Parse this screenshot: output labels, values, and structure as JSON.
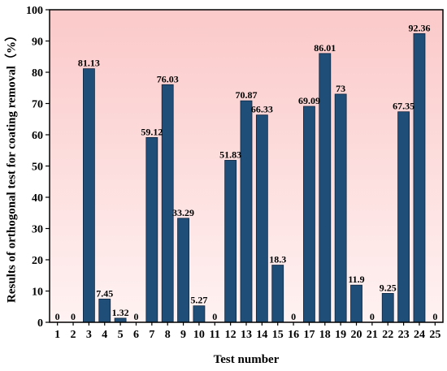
{
  "chart_data": {
    "type": "bar",
    "title": "",
    "xlabel": "Test number",
    "ylabel": "Results of orthogonal test for coating removal（%）",
    "categories": [
      "1",
      "2",
      "3",
      "4",
      "5",
      "6",
      "7",
      "8",
      "9",
      "10",
      "11",
      "12",
      "13",
      "14",
      "15",
      "16",
      "17",
      "18",
      "19",
      "20",
      "21",
      "22",
      "23",
      "24",
      "25"
    ],
    "values": [
      0,
      0,
      81.13,
      7.45,
      1.32,
      0,
      59.12,
      76.03,
      33.29,
      5.27,
      0,
      51.83,
      70.87,
      66.33,
      18.3,
      0,
      69.09,
      86.01,
      73,
      11.9,
      0,
      9.25,
      67.35,
      92.36,
      0
    ],
    "value_labels": [
      "0",
      "0",
      "81.13",
      "7.45",
      "1.32",
      "0",
      "59.12",
      "76.03",
      "33.29",
      "5.27",
      "0",
      "51.83",
      "70.87",
      "66.33",
      "18.3",
      "0",
      "69.09",
      "86.01",
      "73",
      "11.9",
      "0",
      "9.25",
      "67.35",
      "92.36",
      "0"
    ],
    "ylim": [
      0,
      100
    ],
    "yticks": [
      0,
      10,
      20,
      30,
      40,
      50,
      60,
      70,
      80,
      90,
      100
    ],
    "grid": false,
    "legend": "none",
    "colors": {
      "bar": "#1f4e79",
      "bar_edge": "#0d2640",
      "plot_bg_top": "#fbc9c9",
      "plot_bg_bottom": "#fff2f2"
    }
  }
}
